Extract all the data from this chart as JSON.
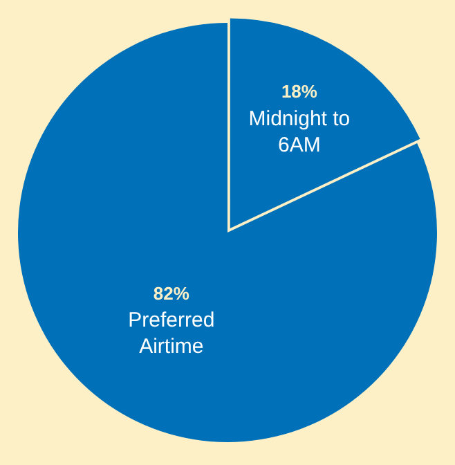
{
  "chart_data": {
    "type": "pie",
    "categories": [
      "Midnight to 6AM",
      "Preferred Airtime"
    ],
    "values": [
      18,
      82
    ],
    "colors": [
      "#0071b9",
      "#0071b9"
    ],
    "value_labels": [
      "18%",
      "82%"
    ],
    "legend": false
  }
}
